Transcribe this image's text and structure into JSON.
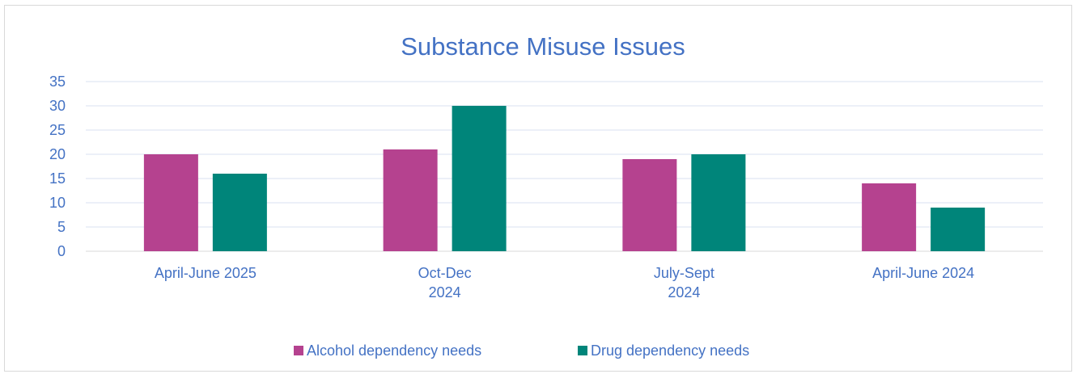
{
  "chart_data": {
    "type": "bar",
    "title": "Substance Misuse Issues",
    "categories": [
      [
        "April-June 2025"
      ],
      [
        "Oct-Dec",
        "2024"
      ],
      [
        "July-Sept",
        "2024"
      ],
      [
        "April-June 2024"
      ]
    ],
    "series": [
      {
        "name": "Alcohol dependency needs",
        "color": "#b5428f",
        "values": [
          20,
          21,
          19,
          14
        ]
      },
      {
        "name": "Drug dependency needs",
        "color": "#00857a",
        "values": [
          16,
          30,
          20,
          9
        ]
      }
    ],
    "ylim": [
      0,
      35
    ],
    "yticks": [
      0,
      5,
      10,
      15,
      20,
      25,
      30,
      35
    ],
    "grid": true,
    "legend_position": "bottom"
  }
}
